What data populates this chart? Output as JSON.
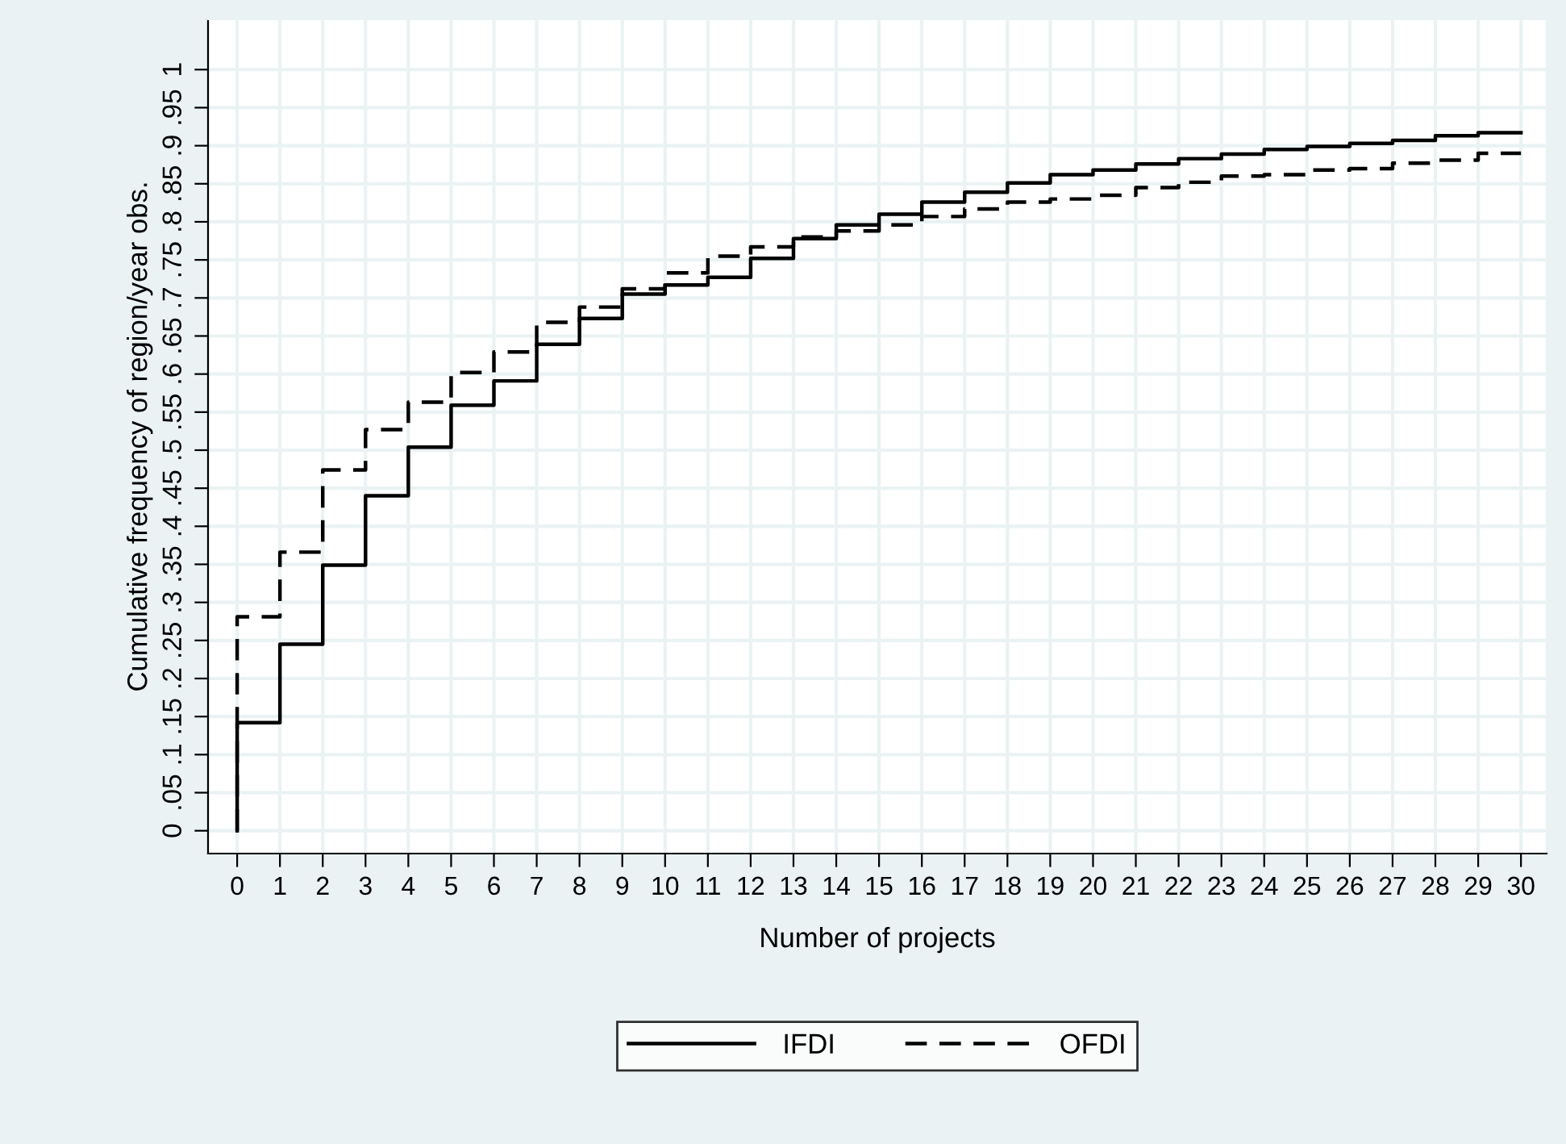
{
  "chart_data": {
    "type": "step",
    "xlabel": "Number of projects",
    "ylabel": "Cumulative frequency of region/year obs.",
    "x": [
      0,
      0,
      1,
      2,
      3,
      4,
      5,
      6,
      7,
      8,
      9,
      10,
      11,
      12,
      13,
      14,
      15,
      16,
      17,
      18,
      19,
      20,
      21,
      22,
      23,
      24,
      25,
      26,
      27,
      28,
      29,
      30
    ],
    "series": [
      {
        "name": "IFDI",
        "color": "#000000",
        "line_style": "solid",
        "values": [
          0,
          0.142,
          0.245,
          0.349,
          0.44,
          0.504,
          0.559,
          0.591,
          0.639,
          0.673,
          0.705,
          0.717,
          0.727,
          0.752,
          0.778,
          0.796,
          0.81,
          0.826,
          0.839,
          0.851,
          0.862,
          0.868,
          0.876,
          0.883,
          0.889,
          0.895,
          0.899,
          0.903,
          0.907,
          0.913,
          0.917,
          0.917
        ]
      },
      {
        "name": "OFDI",
        "color": "#000000",
        "line_style": "dashed",
        "values": [
          0,
          0.281,
          0.366,
          0.474,
          0.527,
          0.563,
          0.602,
          0.629,
          0.668,
          0.688,
          0.712,
          0.733,
          0.755,
          0.767,
          0.78,
          0.788,
          0.796,
          0.807,
          0.817,
          0.826,
          0.83,
          0.835,
          0.845,
          0.852,
          0.86,
          0.862,
          0.868,
          0.87,
          0.877,
          0.881,
          0.89,
          0.89
        ]
      }
    ],
    "xlim": [
      -0.68,
      30.6
    ],
    "ylim": [
      -0.03,
      1.066
    ],
    "xticks": [
      0,
      1,
      2,
      3,
      4,
      5,
      6,
      7,
      8,
      9,
      10,
      11,
      12,
      13,
      14,
      15,
      16,
      17,
      18,
      19,
      20,
      21,
      22,
      23,
      24,
      25,
      26,
      27,
      28,
      29,
      30
    ],
    "yticks": [
      0,
      {
        "value": 0.05,
        "label": ".05"
      },
      {
        "value": 0.1,
        "label": ".1"
      },
      {
        "value": 0.15,
        "label": ".15"
      },
      {
        "value": 0.2,
        "label": ".2"
      },
      {
        "value": 0.25,
        "label": ".25"
      },
      {
        "value": 0.3,
        "label": ".3"
      },
      {
        "value": 0.35,
        "label": ".35"
      },
      {
        "value": 0.4,
        "label": ".4"
      },
      {
        "value": 0.45,
        "label": ".45"
      },
      {
        "value": 0.5,
        "label": ".5"
      },
      {
        "value": 0.55,
        "label": ".55"
      },
      {
        "value": 0.6,
        "label": ".6"
      },
      {
        "value": 0.65,
        "label": ".65"
      },
      {
        "value": 0.7,
        "label": ".7"
      },
      {
        "value": 0.75,
        "label": ".75"
      },
      {
        "value": 0.8,
        "label": ".8"
      },
      {
        "value": 0.85,
        "label": ".85"
      },
      {
        "value": 0.9,
        "label": ".9"
      },
      {
        "value": 0.95,
        "label": ".95"
      },
      1
    ],
    "grid": true,
    "legend": "bottom"
  }
}
